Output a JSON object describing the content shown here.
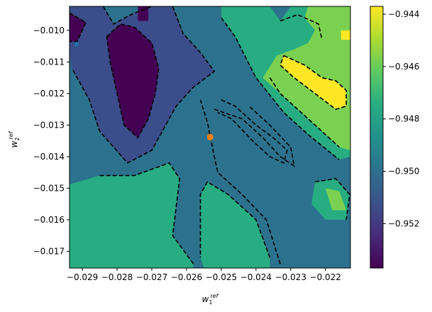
{
  "chart_data": {
    "type": "heatmap",
    "title": "",
    "xlabel": "w",
    "xlabel_sub": "1",
    "xlabel_sup": "ref",
    "ylabel": "w",
    "ylabel_sub": "2",
    "ylabel_sup": "ref",
    "xlim": [
      -0.02937,
      -0.02128
    ],
    "ylim": [
      -0.01753,
      -0.00924
    ],
    "xticks": [
      -0.029,
      -0.028,
      -0.027,
      -0.026,
      -0.025,
      -0.024,
      -0.023,
      -0.022
    ],
    "xtick_labels": [
      "−0.029",
      "−0.028",
      "−0.027",
      "−0.026",
      "−0.025",
      "−0.024",
      "−0.023",
      "−0.022"
    ],
    "yticks": [
      -0.01,
      -0.011,
      -0.012,
      -0.013,
      -0.014,
      -0.015,
      -0.016,
      -0.017
    ],
    "ytick_labels": [
      "−0.010",
      "−0.011",
      "−0.012",
      "−0.013",
      "−0.014",
      "−0.015",
      "−0.016",
      "−0.017"
    ],
    "colorbar": {
      "colormap": "viridis",
      "range": [
        -0.9537,
        -0.9437
      ],
      "ticks": [
        -0.944,
        -0.946,
        -0.948,
        -0.95,
        -0.952
      ],
      "tick_labels": [
        "−0.944",
        "−0.946",
        "−0.948",
        "−0.950",
        "−0.952"
      ],
      "levels": [
        {
          "value": -0.953,
          "color": "#440154"
        },
        {
          "value": -0.9515,
          "color": "#3b4d8a"
        },
        {
          "value": -0.9495,
          "color": "#2c728e"
        },
        {
          "value": -0.9475,
          "color": "#27ad81"
        },
        {
          "value": -0.9455,
          "color": "#7ad151"
        },
        {
          "value": -0.944,
          "color": "#fde725"
        }
      ]
    },
    "markers": [
      {
        "kind": "star",
        "x": -0.02917,
        "y": -0.01044,
        "color": "#1f77b4"
      },
      {
        "kind": "circle",
        "x": -0.02532,
        "y": -0.01338,
        "color": "#ff7f0e"
      }
    ],
    "regions": [
      {
        "level": 2,
        "points": [
          [
            -0.02937,
            -0.00924
          ],
          [
            -0.02128,
            -0.00924
          ],
          [
            -0.02128,
            -0.01753
          ],
          [
            -0.02937,
            -0.01753
          ]
        ]
      },
      {
        "level": 3,
        "points": [
          [
            -0.02937,
            -0.01753
          ],
          [
            -0.02937,
            -0.01488
          ],
          [
            -0.0285,
            -0.0146
          ],
          [
            -0.0275,
            -0.0146
          ],
          [
            -0.0265,
            -0.0142
          ],
          [
            -0.0262,
            -0.0147
          ],
          [
            -0.0264,
            -0.0165
          ],
          [
            -0.0258,
            -0.0174
          ],
          [
            -0.0258,
            -0.01753
          ]
        ]
      },
      {
        "level": 3,
        "points": [
          [
            -0.0236,
            -0.01753
          ],
          [
            -0.0236,
            -0.0172
          ],
          [
            -0.024,
            -0.016
          ],
          [
            -0.0248,
            -0.0152
          ],
          [
            -0.0254,
            -0.0148
          ],
          [
            -0.0256,
            -0.0152
          ],
          [
            -0.0256,
            -0.0172
          ],
          [
            -0.0255,
            -0.01753
          ]
        ]
      },
      {
        "level": 3,
        "points": [
          [
            -0.025,
            -0.00924
          ],
          [
            -0.0236,
            -0.00924
          ],
          [
            -0.0233,
            -0.0097
          ],
          [
            -0.023,
            -0.00924
          ],
          [
            -0.02128,
            -0.00924
          ],
          [
            -0.02128,
            -0.014
          ],
          [
            -0.0216,
            -0.0141
          ],
          [
            -0.0225,
            -0.0133
          ],
          [
            -0.0232,
            -0.0126
          ],
          [
            -0.024,
            -0.0115
          ],
          [
            -0.0246,
            -0.0102
          ],
          [
            -0.025,
            -0.0096
          ]
        ]
      },
      {
        "level": 3,
        "points": [
          [
            -0.0223,
            -0.0148
          ],
          [
            -0.0217,
            -0.0147
          ],
          [
            -0.0213,
            -0.0152
          ],
          [
            -0.0214,
            -0.016
          ],
          [
            -0.022,
            -0.016
          ],
          [
            -0.0224,
            -0.0155
          ]
        ]
      },
      {
        "level": 4,
        "points": [
          [
            -0.0225,
            -0.00924
          ],
          [
            -0.02128,
            -0.00924
          ],
          [
            -0.02128,
            -0.0138
          ],
          [
            -0.0216,
            -0.0137
          ],
          [
            -0.0222,
            -0.0131
          ],
          [
            -0.0228,
            -0.0125
          ],
          [
            -0.0233,
            -0.012
          ],
          [
            -0.0238,
            -0.0115
          ],
          [
            -0.0234,
            -0.0108
          ],
          [
            -0.0229,
            -0.0106
          ],
          [
            -0.0225,
            -0.0104
          ],
          [
            -0.0223,
            -0.01
          ],
          [
            -0.0226,
            -0.0096
          ]
        ]
      },
      {
        "level": 4,
        "points": [
          [
            -0.022,
            -0.015
          ],
          [
            -0.0216,
            -0.0151
          ],
          [
            -0.0214,
            -0.0157
          ],
          [
            -0.0218,
            -0.0157
          ]
        ]
      },
      {
        "level": 5,
        "points": [
          [
            -0.0232,
            -0.0108
          ],
          [
            -0.0226,
            -0.0111
          ],
          [
            -0.0221,
            -0.0115
          ],
          [
            -0.0217,
            -0.0116
          ],
          [
            -0.0214,
            -0.0119
          ],
          [
            -0.0214,
            -0.0124
          ],
          [
            -0.0217,
            -0.0125
          ],
          [
            -0.0223,
            -0.012
          ],
          [
            -0.0229,
            -0.0115
          ],
          [
            -0.0233,
            -0.0111
          ]
        ]
      },
      {
        "level": 5,
        "points": [
          [
            -0.02155,
            -0.01
          ],
          [
            -0.02128,
            -0.01
          ],
          [
            -0.02128,
            -0.0103
          ],
          [
            -0.02155,
            -0.0103
          ]
        ]
      },
      {
        "level": 1,
        "points": [
          [
            -0.02937,
            -0.00924
          ],
          [
            -0.0284,
            -0.00924
          ],
          [
            -0.0281,
            -0.0098
          ],
          [
            -0.0276,
            -0.0095
          ],
          [
            -0.027,
            -0.00924
          ],
          [
            -0.0264,
            -0.00924
          ],
          [
            -0.0261,
            -0.0101
          ],
          [
            -0.0256,
            -0.0107
          ],
          [
            -0.0252,
            -0.0113
          ],
          [
            -0.0258,
            -0.0118
          ],
          [
            -0.0263,
            -0.0124
          ],
          [
            -0.0266,
            -0.013
          ],
          [
            -0.027,
            -0.0138
          ],
          [
            -0.0277,
            -0.0142
          ],
          [
            -0.0285,
            -0.0132
          ],
          [
            -0.0288,
            -0.0122
          ],
          [
            -0.0293,
            -0.0112
          ],
          [
            -0.02937,
            -0.0107
          ]
        ]
      },
      {
        "level": 0,
        "points": [
          [
            -0.02937,
            -0.00945
          ],
          [
            -0.0289,
            -0.00975
          ],
          [
            -0.02915,
            -0.01035
          ],
          [
            -0.02937,
            -0.01035
          ]
        ]
      },
      {
        "level": 0,
        "points": [
          [
            -0.0283,
            -0.0102
          ],
          [
            -0.0279,
            -0.0098
          ],
          [
            -0.0275,
            -0.0099
          ],
          [
            -0.027,
            -0.0104
          ],
          [
            -0.0268,
            -0.0112
          ],
          [
            -0.0269,
            -0.012
          ],
          [
            -0.0271,
            -0.0128
          ],
          [
            -0.0274,
            -0.0134
          ],
          [
            -0.0278,
            -0.013
          ],
          [
            -0.028,
            -0.012
          ],
          [
            -0.0282,
            -0.011
          ]
        ]
      },
      {
        "level": 0,
        "points": [
          [
            -0.0274,
            -0.00924
          ],
          [
            -0.0271,
            -0.00924
          ],
          [
            -0.0271,
            -0.0097
          ],
          [
            -0.0274,
            -0.0097
          ]
        ]
      }
    ],
    "contours": [
      [
        [
          -0.0285,
          -0.0146
        ],
        [
          -0.0275,
          -0.0146
        ],
        [
          -0.0265,
          -0.0142
        ],
        [
          -0.0262,
          -0.0147
        ],
        [
          -0.0264,
          -0.0165
        ],
        [
          -0.0258,
          -0.0174
        ]
      ],
      [
        [
          -0.0236,
          -0.0172
        ],
        [
          -0.024,
          -0.016
        ],
        [
          -0.0248,
          -0.0152
        ],
        [
          -0.0254,
          -0.0148
        ],
        [
          -0.0256,
          -0.0152
        ],
        [
          -0.0256,
          -0.0172
        ]
      ],
      [
        [
          -0.0233,
          -0.0174
        ],
        [
          -0.0237,
          -0.016
        ],
        [
          -0.0244,
          -0.0152
        ],
        [
          -0.0251,
          -0.0145
        ],
        [
          -0.0252,
          -0.014
        ],
        [
          -0.0254,
          -0.0129
        ],
        [
          -0.0256,
          -0.0122
        ]
      ],
      [
        [
          -0.025,
          -0.0122
        ],
        [
          -0.0246,
          -0.0124
        ],
        [
          -0.024,
          -0.013
        ],
        [
          -0.0235,
          -0.0134
        ],
        [
          -0.0231,
          -0.0138
        ],
        [
          -0.0232,
          -0.0142
        ],
        [
          -0.0236,
          -0.014
        ],
        [
          -0.0241,
          -0.0135
        ],
        [
          -0.0247,
          -0.0128
        ],
        [
          -0.0251,
          -0.0126
        ]
      ],
      [
        [
          -0.0252,
          -0.0125
        ],
        [
          -0.0244,
          -0.0128
        ],
        [
          -0.0238,
          -0.0134
        ],
        [
          -0.0233,
          -0.014
        ],
        [
          -0.0229,
          -0.0143
        ],
        [
          -0.023,
          -0.0137
        ],
        [
          -0.0236,
          -0.013
        ],
        [
          -0.0242,
          -0.0124
        ]
      ],
      [
        [
          -0.025,
          -0.0096
        ],
        [
          -0.0246,
          -0.0102
        ],
        [
          -0.024,
          -0.0115
        ],
        [
          -0.0232,
          -0.0126
        ],
        [
          -0.0225,
          -0.0133
        ],
        [
          -0.0216,
          -0.0141
        ]
      ],
      [
        [
          -0.0233,
          -0.0097
        ],
        [
          -0.0228,
          -0.0095
        ],
        [
          -0.0222,
          -0.0098
        ],
        [
          -0.0221,
          -0.0103
        ]
      ],
      [
        [
          -0.0236,
          -0.0115
        ],
        [
          -0.0233,
          -0.012
        ],
        [
          -0.0228,
          -0.0125
        ],
        [
          -0.0222,
          -0.0131
        ],
        [
          -0.0216,
          -0.0137
        ]
      ],
      [
        [
          -0.0232,
          -0.0108
        ],
        [
          -0.0226,
          -0.0111
        ],
        [
          -0.0221,
          -0.0115
        ],
        [
          -0.0217,
          -0.0116
        ],
        [
          -0.0214,
          -0.0119
        ],
        [
          -0.0214,
          -0.0124
        ],
        [
          -0.0217,
          -0.0125
        ],
        [
          -0.0223,
          -0.012
        ],
        [
          -0.0229,
          -0.0115
        ],
        [
          -0.0233,
          -0.0111
        ],
        [
          -0.0232,
          -0.0108
        ]
      ],
      [
        [
          -0.0284,
          -0.00924
        ],
        [
          -0.0281,
          -0.0098
        ],
        [
          -0.0276,
          -0.0095
        ],
        [
          -0.027,
          -0.00924
        ]
      ],
      [
        [
          -0.0264,
          -0.00924
        ],
        [
          -0.0261,
          -0.0101
        ],
        [
          -0.0256,
          -0.0107
        ],
        [
          -0.0252,
          -0.0113
        ],
        [
          -0.0258,
          -0.0118
        ],
        [
          -0.0263,
          -0.0124
        ],
        [
          -0.0266,
          -0.013
        ],
        [
          -0.027,
          -0.0138
        ],
        [
          -0.0277,
          -0.0142
        ],
        [
          -0.0285,
          -0.0132
        ],
        [
          -0.0288,
          -0.0122
        ],
        [
          -0.0293,
          -0.0112
        ]
      ],
      [
        [
          -0.02937,
          -0.00945
        ],
        [
          -0.0289,
          -0.00975
        ],
        [
          -0.02915,
          -0.01035
        ],
        [
          -0.02937,
          -0.01035
        ]
      ],
      [
        [
          -0.0283,
          -0.0102
        ],
        [
          -0.0279,
          -0.0098
        ],
        [
          -0.0275,
          -0.0099
        ],
        [
          -0.027,
          -0.0104
        ],
        [
          -0.0268,
          -0.0112
        ],
        [
          -0.0269,
          -0.012
        ],
        [
          -0.0271,
          -0.0128
        ],
        [
          -0.0274,
          -0.0134
        ],
        [
          -0.0278,
          -0.013
        ],
        [
          -0.028,
          -0.012
        ],
        [
          -0.0282,
          -0.011
        ],
        [
          -0.0283,
          -0.0102
        ]
      ],
      [
        [
          -0.0223,
          -0.0148
        ],
        [
          -0.0217,
          -0.0147
        ],
        [
          -0.0213,
          -0.0152
        ],
        [
          -0.0214,
          -0.016
        ]
      ]
    ]
  }
}
